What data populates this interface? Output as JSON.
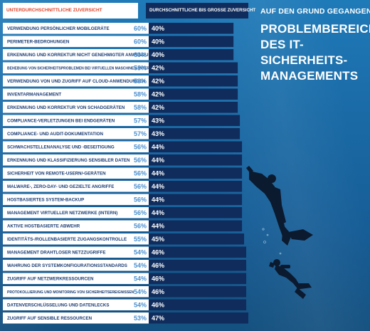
{
  "header": {
    "left_label": "UNTERDURCHSCHNITTLICHE ZUVERSICHT",
    "right_label": "DURCHSCHNITTLICHE BIS GROSSE ZUVERSICHT"
  },
  "title": {
    "small": "AUF DEN GRUND GEGANGEN:",
    "big": "PROBLEMBEREICHE DES IT-SICHERHEITS-MANAGEMENTS"
  },
  "colors": {
    "left_bar": "#ffffff",
    "right_bar": "#0f2c5c",
    "label_text": "#1a3c74",
    "left_value": "#4a90d0",
    "right_value": "#ffffff",
    "header_left_text": "#e2452a"
  },
  "chart_data": {
    "type": "bar",
    "orientation": "horizontal-diverging",
    "categories": [
      "VERWENDUNG PERSÖNLICHER MOBILGERÄTE",
      "PERIMETER-BEDROHUNGEN",
      "ERKENNUNG UND KORREKTUR NICHT GENEHMIGTER ANWENDUNGEN",
      "BEHEBUNG VON SICHERHEITSPROBLEMEN BEI VIRTUELLEN MASCHINEN (INTERN)",
      "VERWENDUNG VON UND ZUGRIFF AUF CLOUD-ANWENDUNGEN",
      "INVENTARMANAGEMENT",
      "ERKENNUNG UND KORREKTUR VON SCHADGERÄTEN",
      "COMPLIANCE-VERLETZUNGEN BEI ENDGERÄTEN",
      "COMPLIANCE- UND AUDIT-DOKUMENTATION",
      "SCHWACHSTELLENANALYSE UND -BESEITIGUNG",
      "ERKENNUNG UND KLASSIFIZIERUNG SENSIBLER DATEN",
      "SICHERHEIT VON REMOTE-USERN/-GERÄTEN",
      "MALWARE-, ZERO-DAY- UND GEZIELTE ANGRIFFE",
      "HOSTBASIERTES SYSTEM-BACKUP",
      "MANAGEMENT VIRTUELLER NETZWERKE (INTERN)",
      "AKTIVE HOSTBASIERTE ABWEHR",
      "IDENTITÄTS-/ROLLENBASIERTE ZUGANGSKONTROLLE",
      "MANAGEMENT DRAHTLOSER NETZZUGRIFFE",
      "WAHRUNG DER SYSTEMKONFIGURATIONSSTANDARDS",
      "ZUGRIFF AUF NETZWERKRESSOURCEN",
      "PROTOKOLLIERUNG UND MONITORING VON SICHERHEITSEREIGNISSEN",
      "DATENVERSCHLÜSSELUNG UND DATENLECKS",
      "ZUGRIFF AUF SENSIBLE RESSOURCEN"
    ],
    "series": [
      {
        "name": "UNTERDURCHSCHNITTLICHE ZUVERSICHT",
        "values": [
          60,
          60,
          60,
          58,
          58,
          58,
          58,
          57,
          57,
          56,
          56,
          56,
          56,
          56,
          56,
          56,
          55,
          54,
          54,
          54,
          54,
          54,
          53
        ],
        "labels": [
          "60%",
          "60%",
          "60%",
          "58%",
          "58%",
          "58%",
          "58%",
          "57%",
          "57%",
          "56%",
          "56%",
          "56%",
          "56%",
          "56%",
          "56%",
          "56%",
          "55%",
          "54%",
          "54%",
          "54%",
          "54%",
          "54%",
          "53%"
        ]
      },
      {
        "name": "DURCHSCHNITTLICHE BIS GROSSE ZUVERSICHT",
        "values": [
          40,
          40,
          40,
          42,
          42,
          42,
          42,
          43,
          43,
          44,
          44,
          44,
          44,
          44,
          44,
          44,
          45,
          46,
          46,
          46,
          46,
          46,
          47
        ],
        "labels": [
          "40%",
          "40%",
          "40%",
          "42%",
          "42%",
          "42%",
          "42%",
          "43%",
          "43%",
          "44%",
          "44%",
          "44%",
          "44%",
          "44%",
          "44%",
          "44%",
          "45%",
          "46%",
          "46%",
          "46%",
          "46%",
          "46%",
          "47%"
        ]
      }
    ],
    "xlim": [
      0,
      100
    ],
    "small_label_rows": [
      3,
      20
    ]
  }
}
